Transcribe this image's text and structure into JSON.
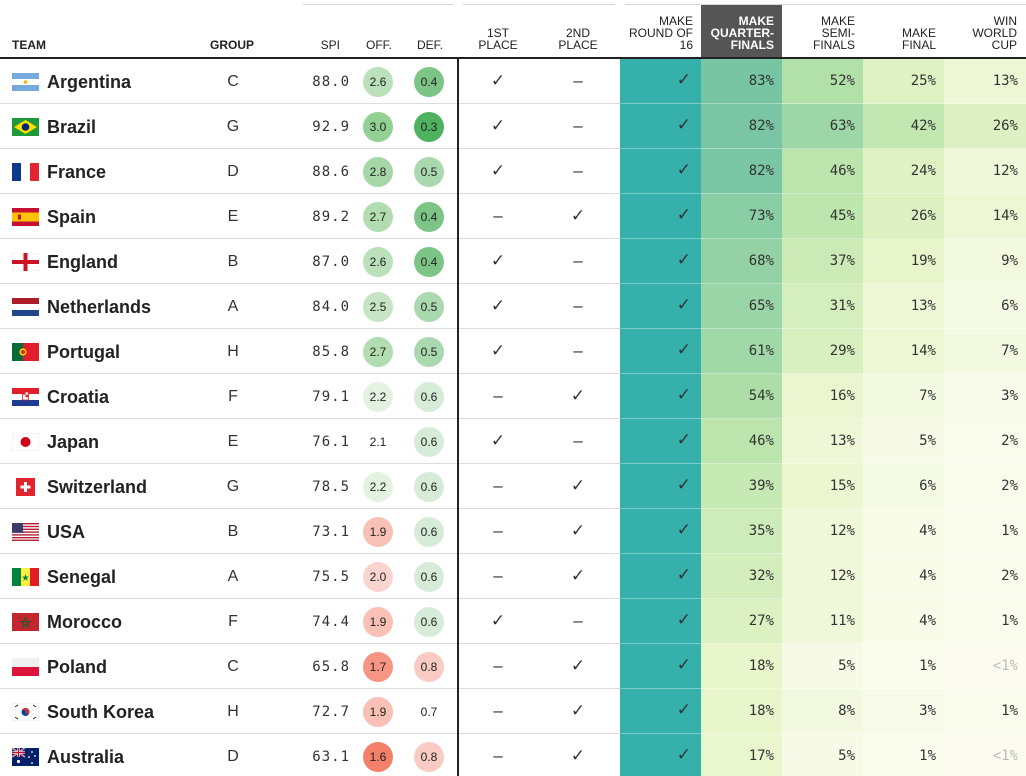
{
  "headers": {
    "team": "TEAM",
    "group": "GROUP",
    "spi": "SPI",
    "off": "OFF.",
    "def": "DEF.",
    "first": [
      "1ST",
      "PLACE"
    ],
    "second": [
      "2ND",
      "PLACE"
    ],
    "r16": [
      "MAKE",
      "ROUND OF",
      "16"
    ],
    "qf": [
      "MAKE",
      "QUARTER-",
      "FINALS"
    ],
    "sf": [
      "MAKE",
      "SEMI-",
      "FINALS"
    ],
    "final": [
      "MAKE",
      "FINAL"
    ],
    "win": [
      "WIN",
      "WORLD",
      "CUP"
    ]
  },
  "symbols": {
    "check": "✓",
    "dash": "–"
  },
  "colors": {
    "r16": "#35b0aa",
    "header_highlight": "#555555",
    "off_high": "#8fd08f",
    "def_strong": "#5db868",
    "negative": "#f47f6a",
    "check_color": "#333333"
  },
  "teams": [
    {
      "name": "Argentina",
      "flag": "argentina-flag-icon",
      "group": "C",
      "spi": "88.0",
      "off": "2.6",
      "def": "0.4",
      "first": "✓",
      "second": "–",
      "r16": "✓",
      "qf": "83%",
      "sf": "52%",
      "final": "25%",
      "win": "13%"
    },
    {
      "name": "Brazil",
      "flag": "brazil-flag-icon",
      "group": "G",
      "spi": "92.9",
      "off": "3.0",
      "def": "0.3",
      "first": "✓",
      "second": "–",
      "r16": "✓",
      "qf": "82%",
      "sf": "63%",
      "final": "42%",
      "win": "26%"
    },
    {
      "name": "France",
      "flag": "france-flag-icon",
      "group": "D",
      "spi": "88.6",
      "off": "2.8",
      "def": "0.5",
      "first": "✓",
      "second": "–",
      "r16": "✓",
      "qf": "82%",
      "sf": "46%",
      "final": "24%",
      "win": "12%"
    },
    {
      "name": "Spain",
      "flag": "spain-flag-icon",
      "group": "E",
      "spi": "89.2",
      "off": "2.7",
      "def": "0.4",
      "first": "–",
      "second": "✓",
      "r16": "✓",
      "qf": "73%",
      "sf": "45%",
      "final": "26%",
      "win": "14%"
    },
    {
      "name": "England",
      "flag": "england-flag-icon",
      "group": "B",
      "spi": "87.0",
      "off": "2.6",
      "def": "0.4",
      "first": "✓",
      "second": "–",
      "r16": "✓",
      "qf": "68%",
      "sf": "37%",
      "final": "19%",
      "win": "9%"
    },
    {
      "name": "Netherlands",
      "flag": "netherlands-flag-icon",
      "group": "A",
      "spi": "84.0",
      "off": "2.5",
      "def": "0.5",
      "first": "✓",
      "second": "–",
      "r16": "✓",
      "qf": "65%",
      "sf": "31%",
      "final": "13%",
      "win": "6%"
    },
    {
      "name": "Portugal",
      "flag": "portugal-flag-icon",
      "group": "H",
      "spi": "85.8",
      "off": "2.7",
      "def": "0.5",
      "first": "✓",
      "second": "–",
      "r16": "✓",
      "qf": "61%",
      "sf": "29%",
      "final": "14%",
      "win": "7%"
    },
    {
      "name": "Croatia",
      "flag": "croatia-flag-icon",
      "group": "F",
      "spi": "79.1",
      "off": "2.2",
      "def": "0.6",
      "first": "–",
      "second": "✓",
      "r16": "✓",
      "qf": "54%",
      "sf": "16%",
      "final": "7%",
      "win": "3%"
    },
    {
      "name": "Japan",
      "flag": "japan-flag-icon",
      "group": "E",
      "spi": "76.1",
      "off": "2.1",
      "def": "0.6",
      "first": "✓",
      "second": "–",
      "r16": "✓",
      "qf": "46%",
      "sf": "13%",
      "final": "5%",
      "win": "2%"
    },
    {
      "name": "Switzerland",
      "flag": "switzerland-flag-icon",
      "group": "G",
      "spi": "78.5",
      "off": "2.2",
      "def": "0.6",
      "first": "–",
      "second": "✓",
      "r16": "✓",
      "qf": "39%",
      "sf": "15%",
      "final": "6%",
      "win": "2%"
    },
    {
      "name": "USA",
      "flag": "usa-flag-icon",
      "group": "B",
      "spi": "73.1",
      "off": "1.9",
      "def": "0.6",
      "first": "–",
      "second": "✓",
      "r16": "✓",
      "qf": "35%",
      "sf": "12%",
      "final": "4%",
      "win": "1%"
    },
    {
      "name": "Senegal",
      "flag": "senegal-flag-icon",
      "group": "A",
      "spi": "75.5",
      "off": "2.0",
      "def": "0.6",
      "first": "–",
      "second": "✓",
      "r16": "✓",
      "qf": "32%",
      "sf": "12%",
      "final": "4%",
      "win": "2%"
    },
    {
      "name": "Morocco",
      "flag": "morocco-flag-icon",
      "group": "F",
      "spi": "74.4",
      "off": "1.9",
      "def": "0.6",
      "first": "✓",
      "second": "–",
      "r16": "✓",
      "qf": "27%",
      "sf": "11%",
      "final": "4%",
      "win": "1%"
    },
    {
      "name": "Poland",
      "flag": "poland-flag-icon",
      "group": "C",
      "spi": "65.8",
      "off": "1.7",
      "def": "0.8",
      "first": "–",
      "second": "✓",
      "r16": "✓",
      "qf": "18%",
      "sf": "5%",
      "final": "1%",
      "win": "<1%"
    },
    {
      "name": "South Korea",
      "flag": "south-korea-flag-icon",
      "group": "H",
      "spi": "72.7",
      "off": "1.9",
      "def": "0.7",
      "first": "–",
      "second": "✓",
      "r16": "✓",
      "qf": "18%",
      "sf": "8%",
      "final": "3%",
      "win": "1%"
    },
    {
      "name": "Australia",
      "flag": "australia-flag-icon",
      "group": "D",
      "spi": "63.1",
      "off": "1.6",
      "def": "0.8",
      "first": "–",
      "second": "✓",
      "r16": "✓",
      "qf": "17%",
      "sf": "5%",
      "final": "1%",
      "win": "<1%"
    }
  ]
}
